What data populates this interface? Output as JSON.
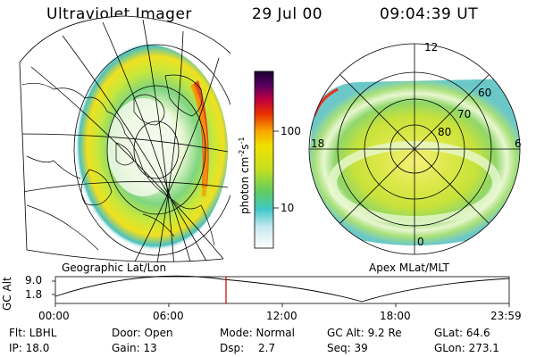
{
  "header": {
    "instrument": "Ultraviolet Imager",
    "date": "29 Jul 00",
    "time": "09:04:39 UT"
  },
  "left_panel": {
    "caption": "Geographic Lat/Lon"
  },
  "right_panel": {
    "caption": "Apex MLat/MLT",
    "mlt_labels": [
      "12",
      "18",
      "6",
      "0"
    ],
    "lat_labels": [
      "60",
      "70",
      "80"
    ]
  },
  "colorbar": {
    "unit_label": "photon cm",
    "unit_exp1": "-2",
    "unit_s": "s",
    "unit_exp2": "-1",
    "tick_labels": [
      "100",
      "10"
    ],
    "scale": "log"
  },
  "altitude_plot": {
    "ylabel": "GC Alt",
    "y_ticks": [
      "9.0",
      "1.8"
    ],
    "x_ticks": [
      "00:00",
      "06:00",
      "12:00",
      "18:00",
      "23:59"
    ],
    "marker_color": "#cc0000"
  },
  "status": {
    "flt": "Flt: LBHL",
    "door": "Door: Open",
    "mode": "Mode: Normal",
    "gcalt": "GC Alt: 9.2 Re",
    "glat": "GLat:  64.6",
    "ip": "IP: 18.0",
    "gain": "Gain: 13",
    "dsp_label": "Dsp:",
    "dsp_value": "2.7",
    "seq": "Seq: 39",
    "glon": "GLon: 273.1"
  }
}
